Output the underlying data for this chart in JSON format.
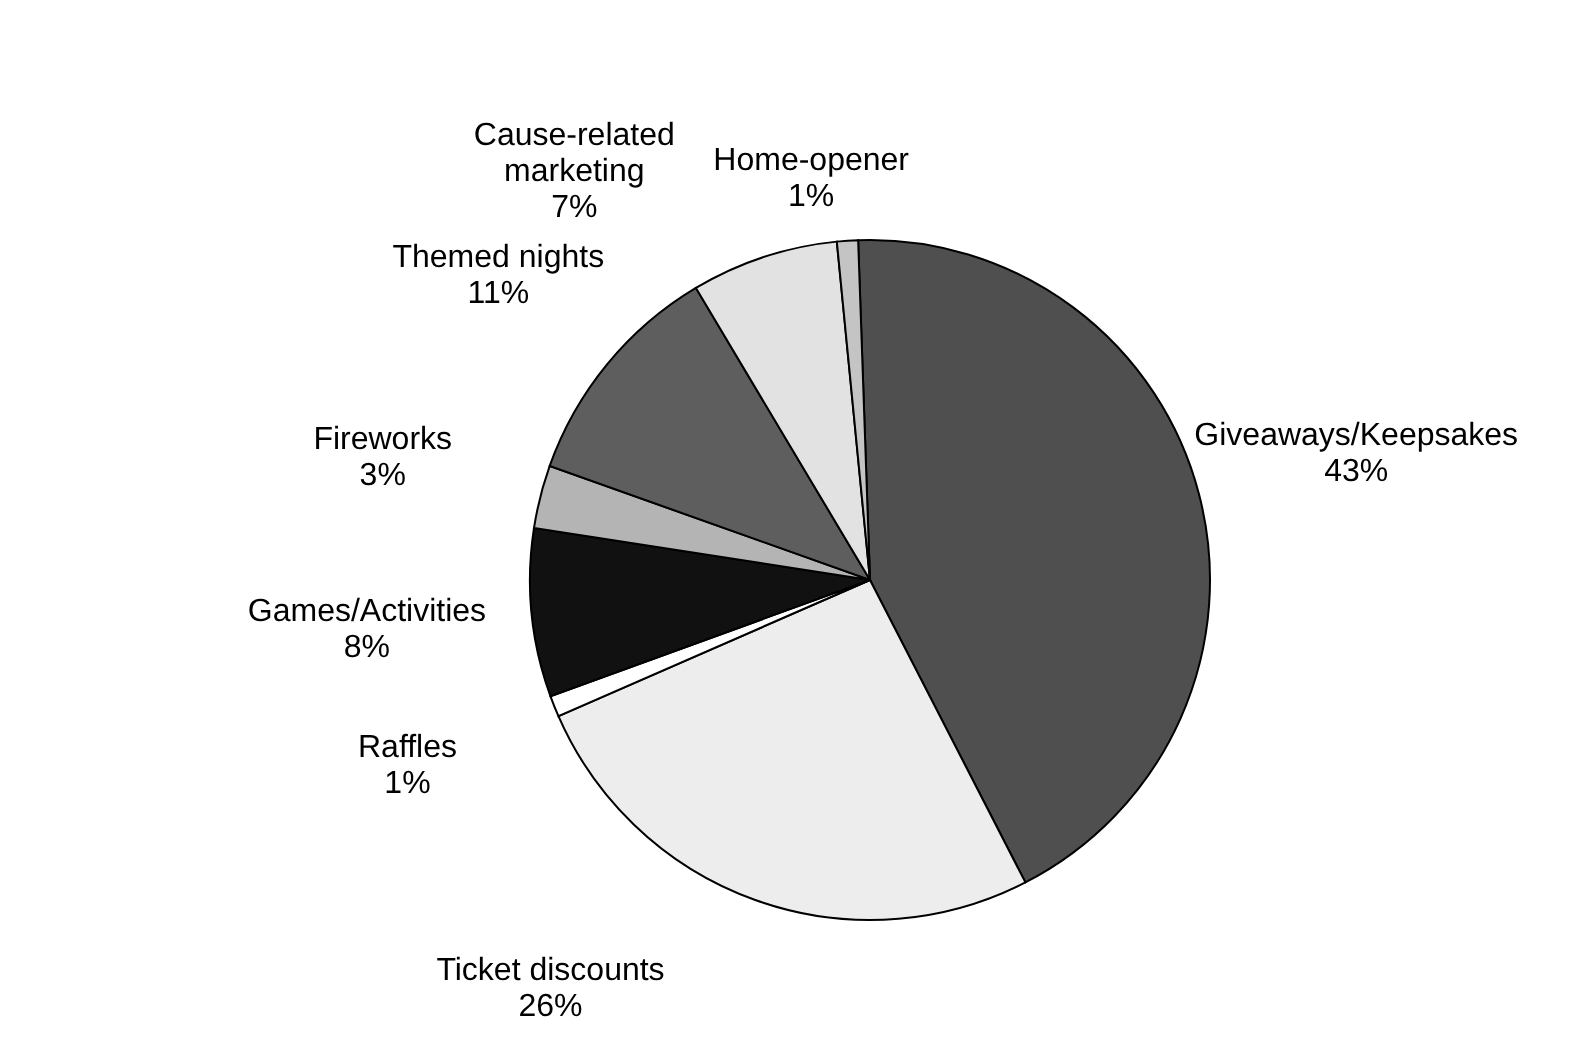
{
  "chart_data": {
    "type": "pie",
    "categories": [
      "Giveaways/Keepsakes",
      "Ticket discounts",
      "Raffles",
      "Games/Activities",
      "Fireworks",
      "Themed nights",
      "Cause-related marketing",
      "Home-opener"
    ],
    "values": [
      43,
      26,
      1,
      8,
      3,
      11,
      7,
      1
    ],
    "value_labels": [
      "43%",
      "26%",
      "1%",
      "8%",
      "3%",
      "11%",
      "7%",
      "1%"
    ],
    "colors": [
      "#4f4f4f",
      "#ededed",
      "#ffffff",
      "#111111",
      "#b4b4b4",
      "#5e5e5e",
      "#e2e2e2",
      "#c4c4c4"
    ],
    "legend": false
  }
}
